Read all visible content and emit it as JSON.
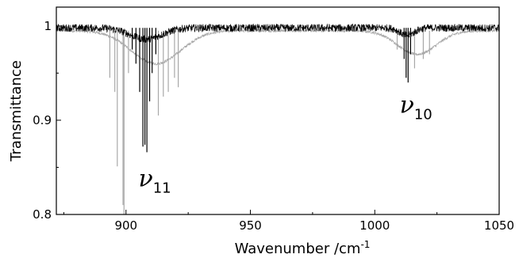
{
  "chart_data": {
    "type": "line",
    "title": "",
    "xlabel": "Wavenumber /cm",
    "xlabel_superscript": "-1",
    "ylabel": "Transmittance",
    "xlim": [
      872,
      1050
    ],
    "ylim": [
      0.8,
      1.02
    ],
    "xticks": [
      900,
      950,
      1000,
      1050
    ],
    "yticks": [
      0.8,
      0.9,
      1
    ],
    "grid": false,
    "legend": "none",
    "series": [
      {
        "color": "#000000",
        "baseline": 0.998,
        "noise": 0.008,
        "bands": [
          {
            "center": 908,
            "halfwidth": 9,
            "depth": 0.012
          },
          {
            "center": 1013,
            "halfwidth": 4,
            "depth": 0.008
          }
        ],
        "lines": [
          {
            "x": 906.8,
            "y": 0.872
          },
          {
            "x": 907.6,
            "y": 0.874
          },
          {
            "x": 908.4,
            "y": 0.866
          },
          {
            "x": 905.5,
            "y": 0.93
          },
          {
            "x": 909.5,
            "y": 0.92
          },
          {
            "x": 904.0,
            "y": 0.96
          },
          {
            "x": 910.5,
            "y": 0.95
          },
          {
            "x": 902.5,
            "y": 0.975
          },
          {
            "x": 912.0,
            "y": 0.97
          },
          {
            "x": 1012.6,
            "y": 0.945
          },
          {
            "x": 1013.4,
            "y": 0.94
          },
          {
            "x": 1011.8,
            "y": 0.965
          },
          {
            "x": 1014.4,
            "y": 0.97
          }
        ]
      },
      {
        "color": "#a8a8a8",
        "baseline": 0.995,
        "noise": 0.003,
        "bands": [
          {
            "center": 912,
            "halfwidth": 14,
            "depth": 0.035
          },
          {
            "center": 1017,
            "halfwidth": 11,
            "depth": 0.025
          }
        ],
        "lines": [
          {
            "x": 896.5,
            "y": 0.851
          },
          {
            "x": 898.8,
            "y": 0.81
          },
          {
            "x": 899.2,
            "y": 0.8
          },
          {
            "x": 893.5,
            "y": 0.945
          },
          {
            "x": 895.5,
            "y": 0.93
          },
          {
            "x": 901.0,
            "y": 0.95
          },
          {
            "x": 913.0,
            "y": 0.905
          },
          {
            "x": 915.0,
            "y": 0.925
          },
          {
            "x": 917.0,
            "y": 0.93
          },
          {
            "x": 919.5,
            "y": 0.945
          },
          {
            "x": 921.0,
            "y": 0.935
          },
          {
            "x": 1009.0,
            "y": 0.975
          },
          {
            "x": 1016.0,
            "y": 0.955
          },
          {
            "x": 1019.5,
            "y": 0.965
          },
          {
            "x": 1022.0,
            "y": 0.97
          }
        ]
      }
    ],
    "annotations": [
      {
        "symbol": "ν",
        "subscript": "11",
        "x": 905,
        "y": 0.83
      },
      {
        "symbol": "ν",
        "subscript": "10",
        "x": 1010,
        "y": 0.908
      }
    ]
  }
}
